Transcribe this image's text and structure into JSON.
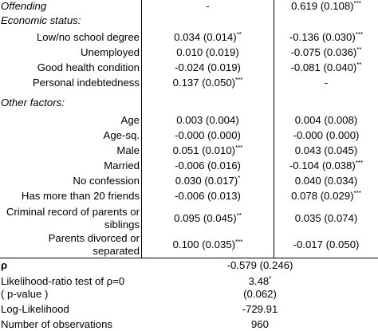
{
  "offending": {
    "label": "Offending",
    "c1": "-",
    "c2": "0.619 (0.108)",
    "c2_sig": "***"
  },
  "economic": {
    "header": "Economic status:",
    "rows": [
      {
        "label": "Low/no school degree",
        "c1": "0.034 (0.014)",
        "c1_sig": "**",
        "c2": "-0.136 (0.030)",
        "c2_sig": "***"
      },
      {
        "label": "Unemployed",
        "c1": "0.010 (0.019)",
        "c1_sig": "",
        "c2": "-0.075 (0.036)",
        "c2_sig": "**"
      },
      {
        "label": "Good health condition",
        "c1": "-0.024 (0.019)",
        "c1_sig": "",
        "c2": "-0.081 (0.040)",
        "c2_sig": "**"
      },
      {
        "label": "Personal indebtedness",
        "c1": "0.137 (0.050)",
        "c1_sig": "***",
        "c2": "-",
        "c2_sig": ""
      }
    ]
  },
  "other": {
    "header": "Other factors:",
    "rows": [
      {
        "label": "Age",
        "c1": "0.003 (0.004)",
        "c1_sig": "",
        "c2": "0.004 (0.008)",
        "c2_sig": ""
      },
      {
        "label": "Age-sq.",
        "c1": "-0.000 (0.000)",
        "c1_sig": "",
        "c2": "-0.000 (0.000)",
        "c2_sig": ""
      },
      {
        "label": "Male",
        "c1": "0.051 (0.010)",
        "c1_sig": "***",
        "c2": "0.043 (0.045)",
        "c2_sig": ""
      },
      {
        "label": "Married",
        "c1": "-0.006 (0.016)",
        "c1_sig": "",
        "c2": "-0.104 (0.038)",
        "c2_sig": "***"
      },
      {
        "label": "No confession",
        "c1": "0.030 (0.017)",
        "c1_sig": "*",
        "c2": "0.040 (0.034)",
        "c2_sig": ""
      },
      {
        "label": "Has more than 20 friends",
        "c1": "-0.006 (0.013)",
        "c1_sig": "",
        "c2": "0.078 (0.029)",
        "c2_sig": "***"
      }
    ],
    "criminal": {
      "label1": "Criminal record of parents or",
      "label2": "siblings",
      "c1": "0.095 (0.045)",
      "c1_sig": "**",
      "c2": "0.035 (0.074)",
      "c2_sig": ""
    },
    "divorced": {
      "label1": "Parents divorced or",
      "label2": "separated",
      "c1": "0.100 (0.035)",
      "c1_sig": "***",
      "c2": "-0.017 (0.050)",
      "c2_sig": ""
    }
  },
  "bottom": {
    "rho": {
      "label": "ρ",
      "value": "-0.579 (0.246)"
    },
    "lr": {
      "label": "Likelihood-ratio test of ρ=0",
      "value": "3.48",
      "sig": "*"
    },
    "pval": {
      "label": "( p-value )",
      "value": "(0.062)"
    },
    "loglik": {
      "label": "Log-Likelihood",
      "value": "-729.91"
    },
    "nobs": {
      "label": "Number of observations",
      "value": "960"
    }
  }
}
